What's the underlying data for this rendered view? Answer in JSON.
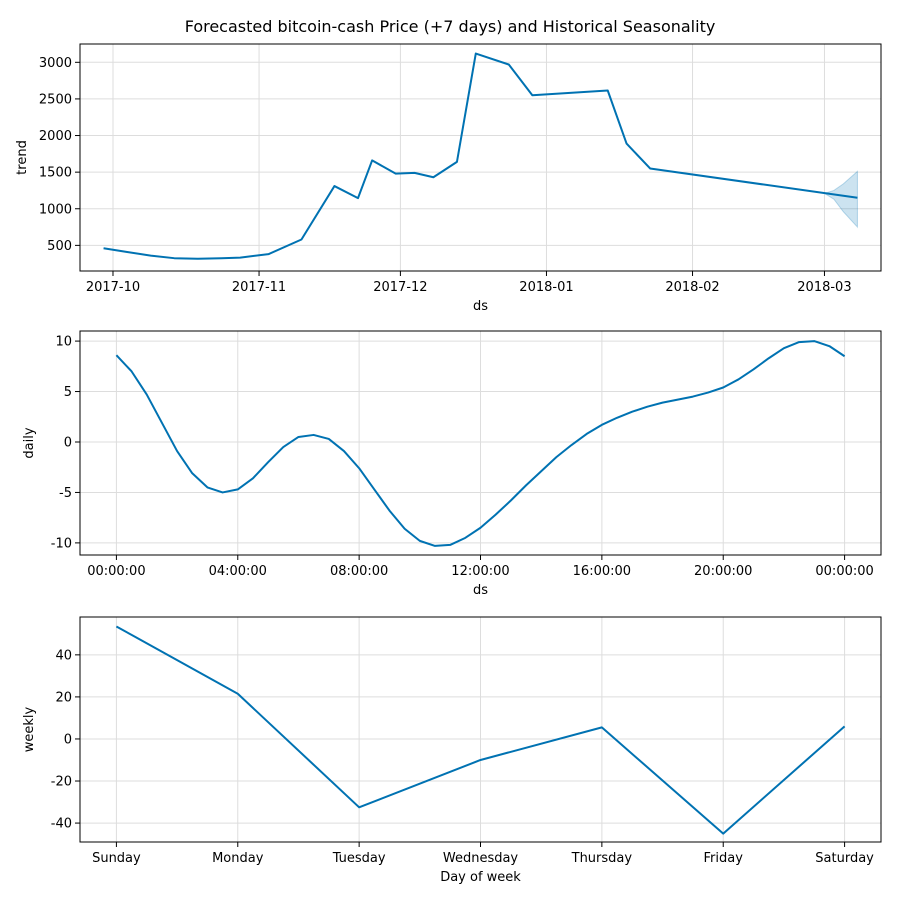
{
  "title": "Forecasted bitcoin-cash Price (+7 days) and Historical Seasonality",
  "colors": {
    "line": "#0072b2",
    "band": "#0072b2",
    "grid": "#dddddd"
  },
  "chart_data": [
    {
      "type": "line",
      "name": "trend-panel",
      "xlabel": "ds",
      "ylabel": "trend",
      "x_type": "date",
      "xlim": [
        "2017-09-24",
        "2018-03-13"
      ],
      "ylim": [
        150,
        3250
      ],
      "x_ticks": [
        {
          "value": "2017-10-01",
          "label": "2017-10"
        },
        {
          "value": "2017-11-01",
          "label": "2017-11"
        },
        {
          "value": "2017-12-01",
          "label": "2017-12"
        },
        {
          "value": "2018-01-01",
          "label": "2018-01"
        },
        {
          "value": "2018-02-01",
          "label": "2018-02"
        },
        {
          "value": "2018-03-01",
          "label": "2018-03"
        }
      ],
      "y_ticks": [
        500,
        1000,
        1500,
        2000,
        2500,
        3000
      ],
      "grid": true,
      "x": [
        "2017-09-29",
        "2017-10-04",
        "2017-10-09",
        "2017-10-14",
        "2017-10-19",
        "2017-10-24",
        "2017-10-28",
        "2017-11-03",
        "2017-11-10",
        "2017-11-17",
        "2017-11-22",
        "2017-11-25",
        "2017-11-30",
        "2017-12-04",
        "2017-12-08",
        "2017-12-13",
        "2017-12-17",
        "2017-12-24",
        "2017-12-29",
        "2018-01-14",
        "2018-01-18",
        "2018-01-23",
        "2018-03-08"
      ],
      "y": [
        460,
        410,
        360,
        325,
        318,
        325,
        333,
        380,
        580,
        1310,
        1145,
        1660,
        1480,
        1490,
        1430,
        1640,
        3120,
        2970,
        2550,
        2615,
        1890,
        1550,
        1150
      ],
      "band": {
        "x": [
          "2018-03-01",
          "2018-03-03",
          "2018-03-05",
          "2018-03-08"
        ],
        "lower": [
          1210,
          1130,
          960,
          750
        ],
        "upper": [
          1210,
          1250,
          1340,
          1510
        ]
      }
    },
    {
      "type": "line",
      "name": "daily-panel",
      "xlabel": "ds",
      "ylabel": "daily",
      "x_type": "hours",
      "xlim": [
        -1.2,
        25.2
      ],
      "ylim": [
        -11.2,
        11.0
      ],
      "x_ticks": [
        {
          "value": 0,
          "label": "00:00:00"
        },
        {
          "value": 4,
          "label": "04:00:00"
        },
        {
          "value": 8,
          "label": "08:00:00"
        },
        {
          "value": 12,
          "label": "12:00:00"
        },
        {
          "value": 16,
          "label": "16:00:00"
        },
        {
          "value": 20,
          "label": "20:00:00"
        },
        {
          "value": 24,
          "label": "00:00:00"
        }
      ],
      "y_ticks": [
        -10,
        -5,
        0,
        5,
        10
      ],
      "grid": true,
      "x": [
        0,
        0.5,
        1,
        1.5,
        2,
        2.5,
        3,
        3.5,
        4,
        4.5,
        5,
        5.5,
        6,
        6.5,
        7,
        7.5,
        8,
        8.5,
        9,
        9.5,
        10,
        10.5,
        11,
        11.5,
        12,
        12.5,
        13,
        13.5,
        14,
        14.5,
        15,
        15.5,
        16,
        16.5,
        17,
        17.5,
        18,
        18.5,
        19,
        19.5,
        20,
        20.5,
        21,
        21.5,
        22,
        22.5,
        23,
        23.5,
        24
      ],
      "y": [
        8.6,
        7.0,
        4.7,
        1.9,
        -0.9,
        -3.1,
        -4.5,
        -5.0,
        -4.7,
        -3.6,
        -2.0,
        -0.5,
        0.5,
        0.7,
        0.3,
        -0.9,
        -2.6,
        -4.7,
        -6.8,
        -8.6,
        -9.8,
        -10.3,
        -10.2,
        -9.5,
        -8.5,
        -7.2,
        -5.8,
        -4.3,
        -2.9,
        -1.5,
        -0.3,
        0.8,
        1.7,
        2.4,
        3.0,
        3.5,
        3.9,
        4.2,
        4.5,
        4.9,
        5.4,
        6.2,
        7.2,
        8.3,
        9.3,
        9.9,
        10.0,
        9.5,
        8.5
      ]
    },
    {
      "type": "line",
      "name": "weekly-panel",
      "xlabel": "Day of week",
      "ylabel": "weekly",
      "x_type": "category",
      "xlim": [
        -0.3,
        6.3
      ],
      "ylim": [
        -49,
        58
      ],
      "categories": [
        "Sunday",
        "Monday",
        "Tuesday",
        "Wednesday",
        "Thursday",
        "Friday",
        "Saturday"
      ],
      "y_ticks": [
        -40,
        -20,
        0,
        20,
        40
      ],
      "grid": true,
      "values": [
        53.5,
        21.5,
        -32.5,
        -10.0,
        5.5,
        -45.0,
        6.0
      ]
    }
  ]
}
